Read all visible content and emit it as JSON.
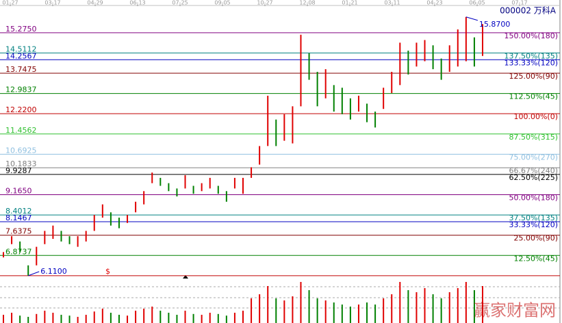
{
  "chart_data": {
    "type": "range-bar",
    "title": "000002 万科A",
    "dates": [
      "01-27",
      "03-17",
      "04-29",
      "06-13",
      "07-25",
      "09-05",
      "10-27",
      "12-08",
      "01-21",
      "03-11",
      "04-23",
      "06-05",
      "07-17"
    ],
    "ylim": [
      5.9,
      16.2
    ],
    "levels": [
      {
        "value": 15.275,
        "label": "15.2750",
        "pct": "150.00%(180)",
        "color": "#800080"
      },
      {
        "value": 14.5112,
        "label": "14.5112",
        "pct": "137.50%(135)",
        "color": "#008080"
      },
      {
        "value": 14.2567,
        "label": "14.2567",
        "pct": "133.33%(120)",
        "color": "#0000c0"
      },
      {
        "value": 13.7475,
        "label": "13.7475",
        "pct": "125.00%(90)",
        "color": "#800000"
      },
      {
        "value": 12.9837,
        "label": "12.9837",
        "pct": "112.50%(45)",
        "color": "#008000"
      },
      {
        "value": 12.22,
        "label": "12.2200",
        "pct": "100.00%(0)",
        "color": "#c00000"
      },
      {
        "value": 11.4562,
        "label": "11.4562",
        "pct": "87.50%(315)",
        "color": "#30c030"
      },
      {
        "value": 10.6925,
        "label": "10.6925",
        "pct": "75.00%(270)",
        "color": "#90c0e0"
      },
      {
        "value": 10.1833,
        "label": "10.1833",
        "pct": "66.67%(240)",
        "color": "#808080"
      },
      {
        "value": 9.9287,
        "label": "9.9287",
        "pct": "62.50%(225)",
        "color": "#000000"
      },
      {
        "value": 9.165,
        "label": "9.1650",
        "pct": "50.00%(180)",
        "color": "#800080"
      },
      {
        "value": 8.4012,
        "label": "8.4012",
        "pct": "37.50%(135)",
        "color": "#008080"
      },
      {
        "value": 8.1467,
        "label": "8.1467",
        "pct": "33.33%(120)",
        "color": "#0000c0"
      },
      {
        "value": 7.6375,
        "label": "7.6375",
        "pct": "25.00%(90)",
        "color": "#800000"
      },
      {
        "value": 6.8737,
        "label": "6.8737",
        "pct": "12.50%(45)",
        "color": "#008000"
      }
    ],
    "high": {
      "value": 15.87,
      "label": "15.8700"
    },
    "low": {
      "value": 6.11,
      "label": "6.1100"
    },
    "marker": "$",
    "up_color": "#e00000",
    "down_color": "#008000",
    "highs": [
      7.0,
      7.6,
      7.4,
      6.5,
      7.2,
      7.8,
      8.0,
      7.8,
      7.6,
      7.6,
      7.8,
      8.4,
      8.8,
      8.5,
      8.3,
      8.4,
      8.9,
      9.3,
      10.0,
      9.8,
      9.6,
      9.4,
      9.9,
      9.5,
      9.6,
      9.8,
      9.5,
      9.3,
      9.8,
      9.8,
      10.2,
      11.0,
      12.9,
      12.0,
      12.2,
      12.5,
      15.2,
      14.5,
      13.8,
      13.9,
      13.3,
      13.2,
      12.8,
      12.9,
      12.6,
      12.3,
      13.2,
      13.8,
      14.9,
      14.6,
      14.9,
      15.0,
      14.8,
      14.3,
      14.8,
      15.4,
      15.87,
      15.1,
      15.6
    ],
    "lows": [
      6.8,
      7.3,
      7.0,
      6.11,
      6.5,
      7.3,
      7.5,
      7.4,
      7.3,
      7.2,
      7.4,
      7.8,
      8.3,
      8.0,
      7.9,
      8.1,
      8.5,
      8.8,
      9.6,
      9.5,
      9.3,
      9.1,
      9.4,
      9.2,
      9.3,
      9.4,
      9.2,
      8.9,
      9.4,
      9.2,
      9.8,
      10.3,
      11.0,
      11.0,
      11.2,
      11.1,
      12.5,
      13.5,
      12.5,
      12.8,
      12.3,
      12.2,
      12.0,
      12.3,
      11.9,
      11.7,
      12.4,
      13.0,
      13.3,
      13.7,
      14.0,
      14.2,
      13.9,
      13.5,
      13.8,
      14.0,
      14.2,
      14.0,
      14.4
    ],
    "volume": [
      20,
      25,
      18,
      15,
      22,
      30,
      25,
      20,
      18,
      15,
      20,
      28,
      35,
      25,
      20,
      18,
      30,
      35,
      40,
      30,
      25,
      20,
      30,
      22,
      20,
      25,
      22,
      18,
      25,
      30,
      60,
      70,
      90,
      60,
      55,
      65,
      100,
      80,
      60,
      55,
      50,
      45,
      40,
      45,
      50,
      45,
      60,
      70,
      100,
      80,
      75,
      85,
      70,
      60,
      75,
      85,
      100,
      80,
      90
    ],
    "watermark": "赢家财富网"
  }
}
